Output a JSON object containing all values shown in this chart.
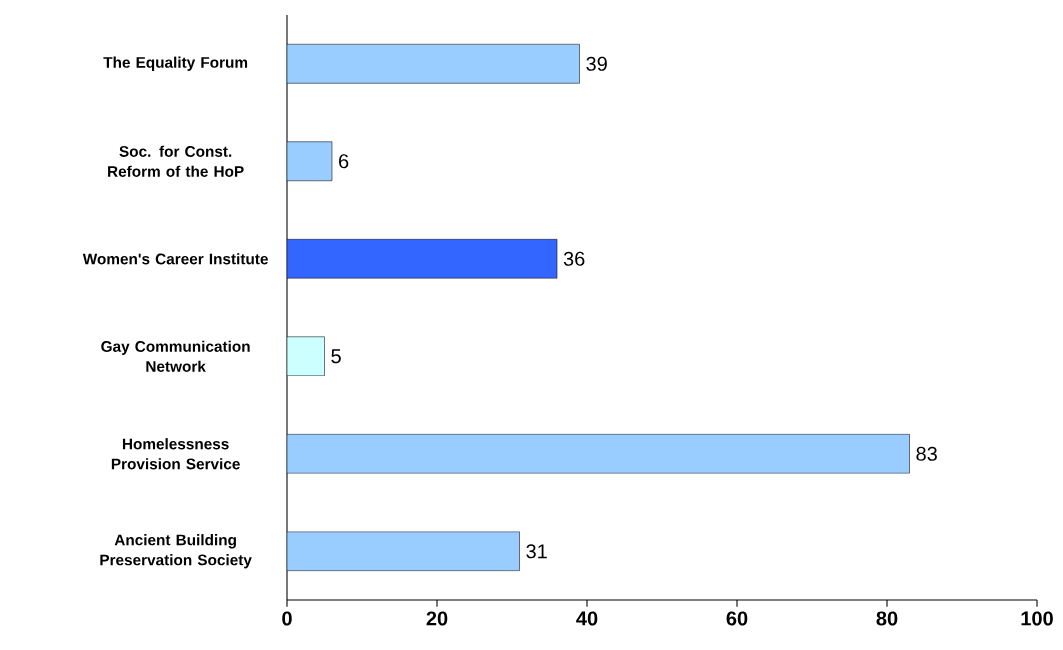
{
  "chart_data": {
    "type": "bar",
    "orientation": "horizontal",
    "categories": [
      "The Equality Forum",
      "Soc. for Const. Reform of the HoP",
      "Women's Career Institute",
      "Gay Communication Network",
      "Homelessness Provision Service",
      "Ancient Building Preservation Society"
    ],
    "values": [
      39,
      6,
      36,
      5,
      83,
      31
    ],
    "colors": [
      "#99ccff",
      "#99ccff",
      "#3366ff",
      "#ccffff",
      "#99ccff",
      "#99ccff"
    ],
    "xlim": [
      0,
      100
    ],
    "xticks": [
      0,
      20,
      40,
      60,
      80,
      100
    ],
    "data_labels": true,
    "grid": false
  }
}
